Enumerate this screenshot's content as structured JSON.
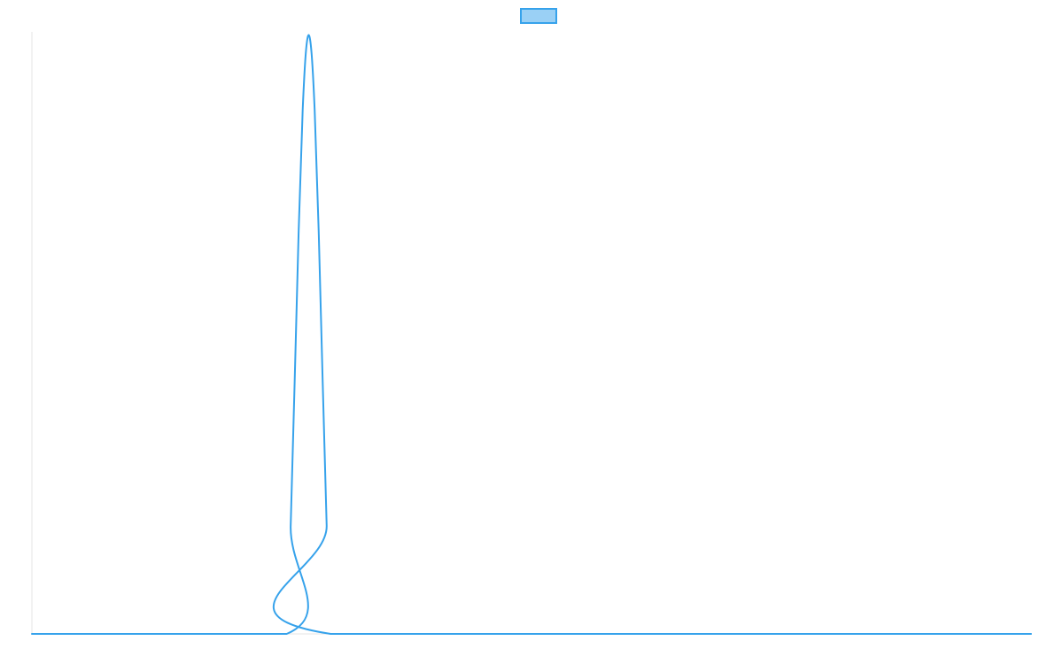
{
  "chart_data": {
    "type": "line",
    "title": "",
    "xlabel": "",
    "ylabel": "",
    "legend": {
      "position": "top-center",
      "entries": [
        {
          "label": "",
          "color": "#36a2eb",
          "fill": "#9ad0f5"
        }
      ]
    },
    "grid": false,
    "xlim": [
      0,
      100
    ],
    "ylim": [
      0,
      1
    ],
    "series": [
      {
        "color": "#36a2eb",
        "x": [
          0,
          25.5,
          25.9,
          26.3,
          26.7,
          27.1,
          27.5,
          27.9,
          28.3,
          28.7,
          29.1,
          29.5,
          29.9,
          100
        ],
        "values": [
          0,
          0,
          0.18,
          0.42,
          0.67,
          0.87,
          0.98,
          0.98,
          0.87,
          0.67,
          0.42,
          0.18,
          0,
          0
        ]
      }
    ]
  }
}
